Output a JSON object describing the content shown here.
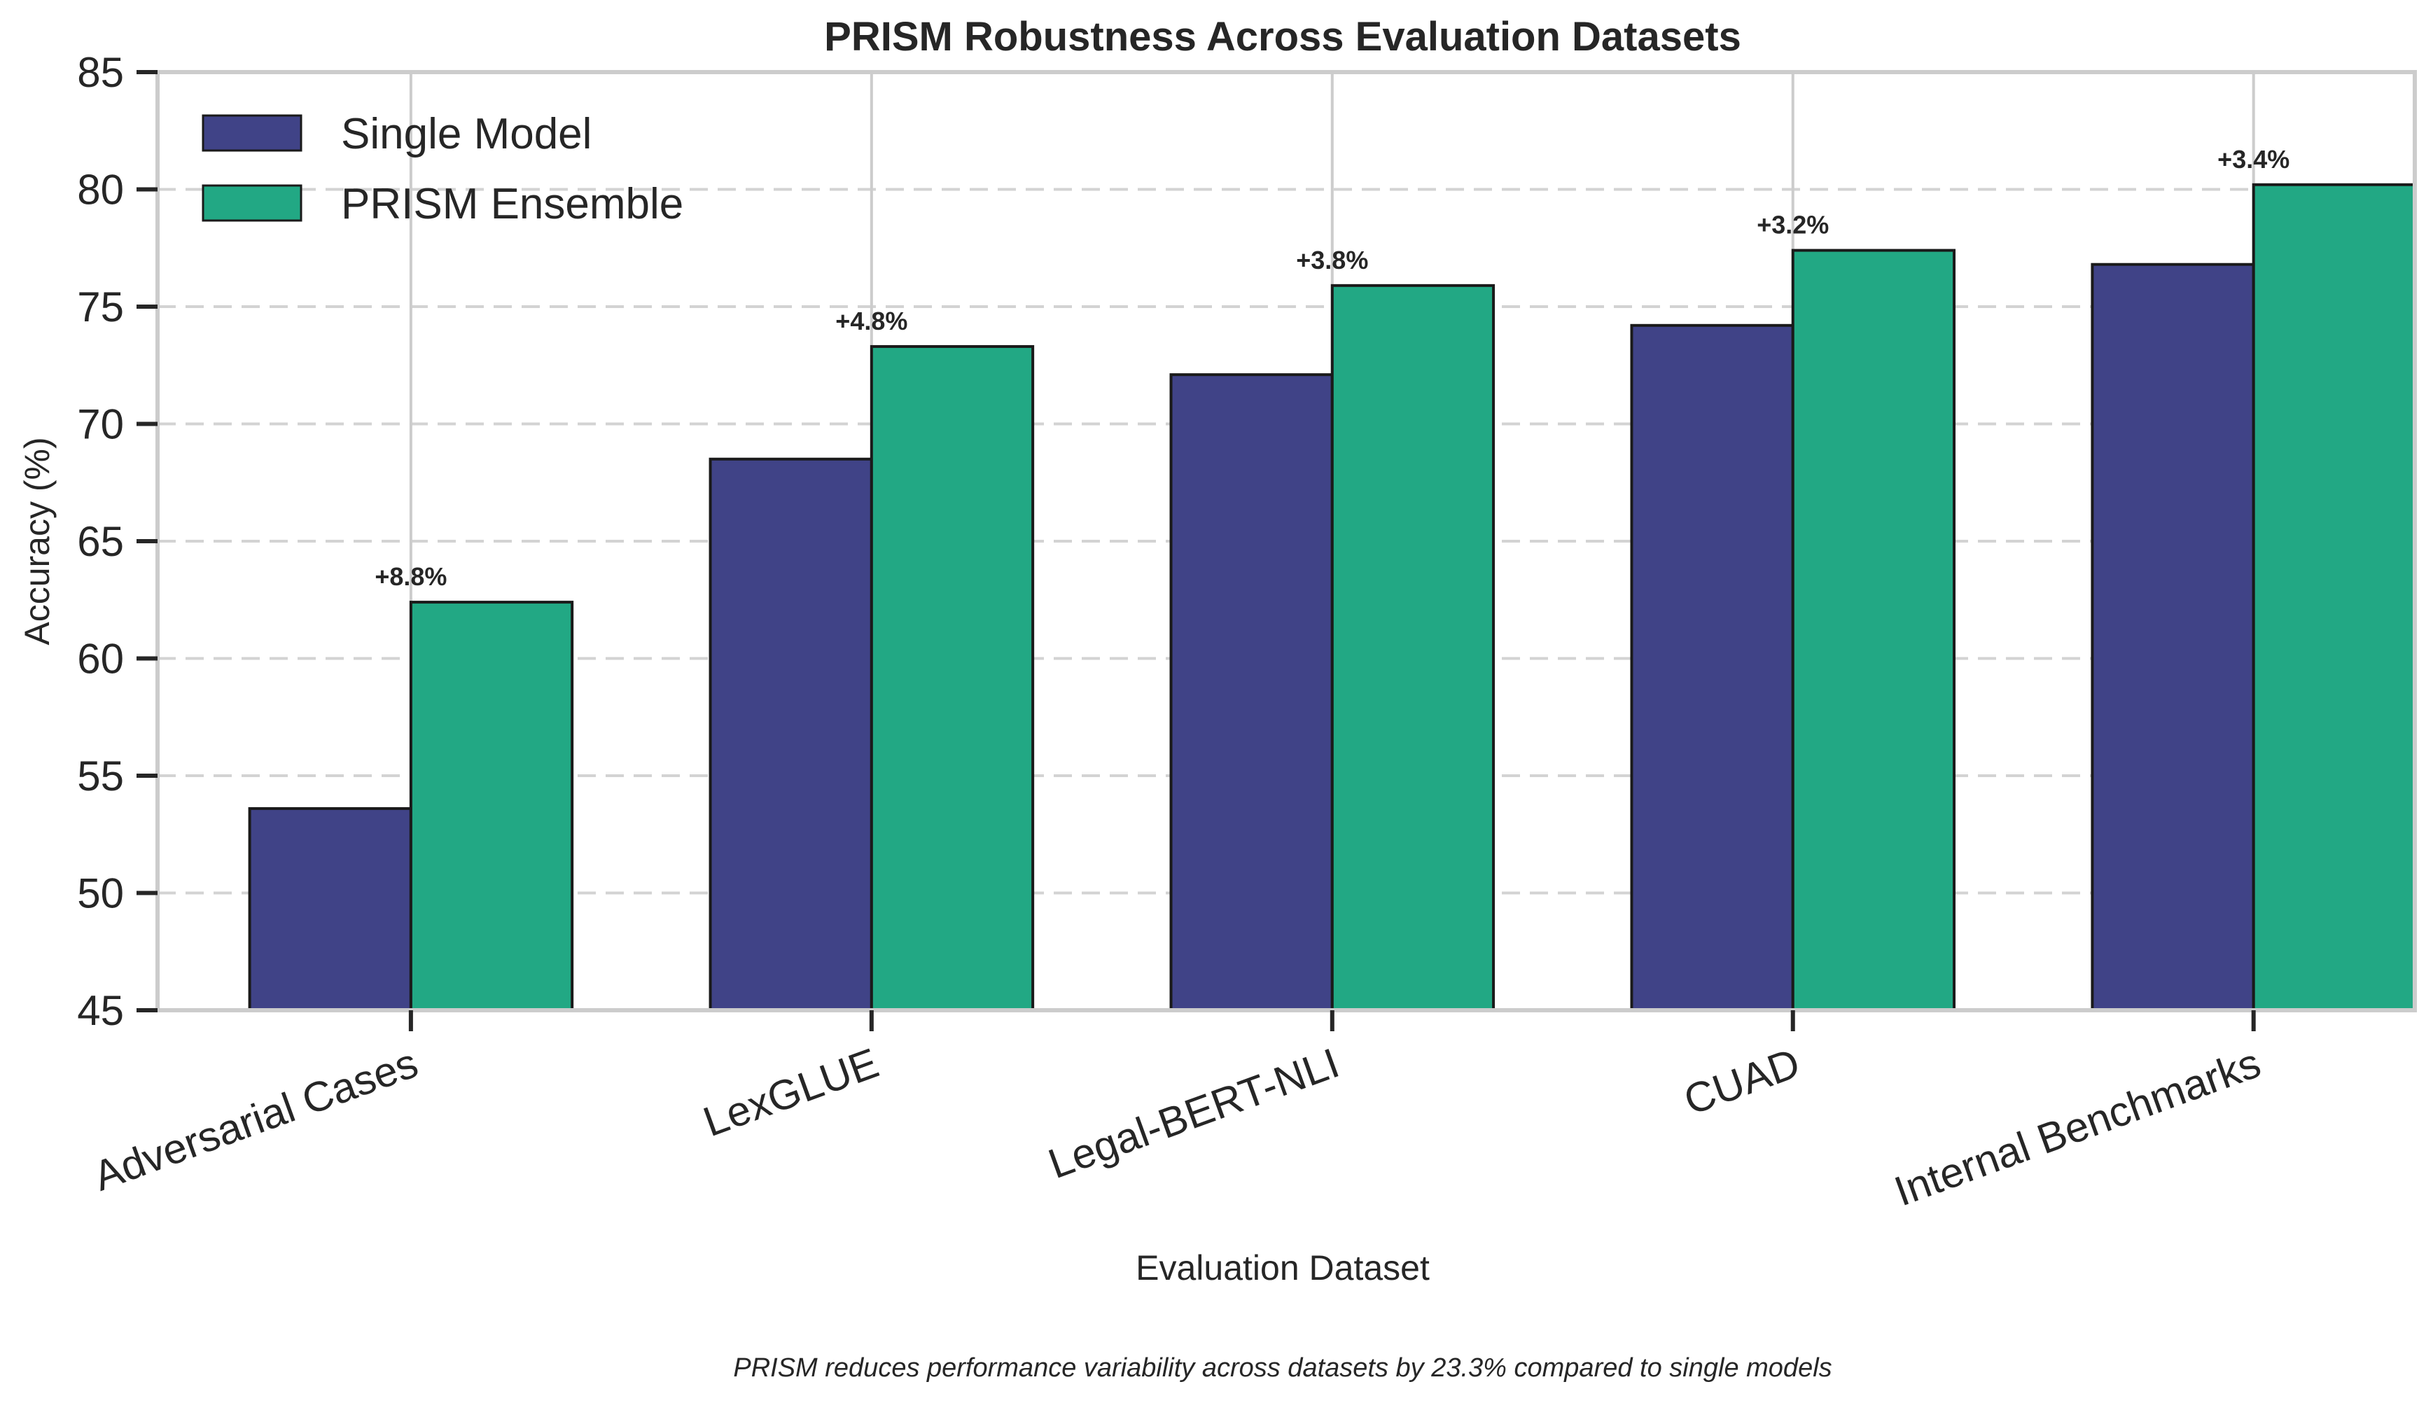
{
  "chart_data": {
    "type": "bar",
    "title": "PRISM Robustness Across Evaluation Datasets",
    "xlabel": "Evaluation Dataset",
    "ylabel": "Accuracy (%)",
    "ylim": [
      45,
      85
    ],
    "yticks": [
      45,
      50,
      55,
      60,
      65,
      70,
      75,
      80,
      85
    ],
    "categories": [
      "Adversarial Cases",
      "LexGLUE",
      "Legal-BERT-NLI",
      "CUAD",
      "Internal Benchmarks"
    ],
    "series": [
      {
        "name": "Single Model",
        "color": "#404387",
        "values": [
          53.6,
          68.5,
          72.1,
          74.2,
          76.8
        ]
      },
      {
        "name": "PRISM Ensemble",
        "color": "#22a884",
        "values": [
          62.4,
          73.3,
          75.9,
          77.4,
          80.2
        ]
      }
    ],
    "annotations": [
      "+8.8%",
      "+4.8%",
      "+3.8%",
      "+3.2%",
      "+3.4%"
    ],
    "grid": true,
    "legend_position": "top-left",
    "caption": "PRISM reduces performance variability across datasets by 23.3% compared to single models"
  }
}
